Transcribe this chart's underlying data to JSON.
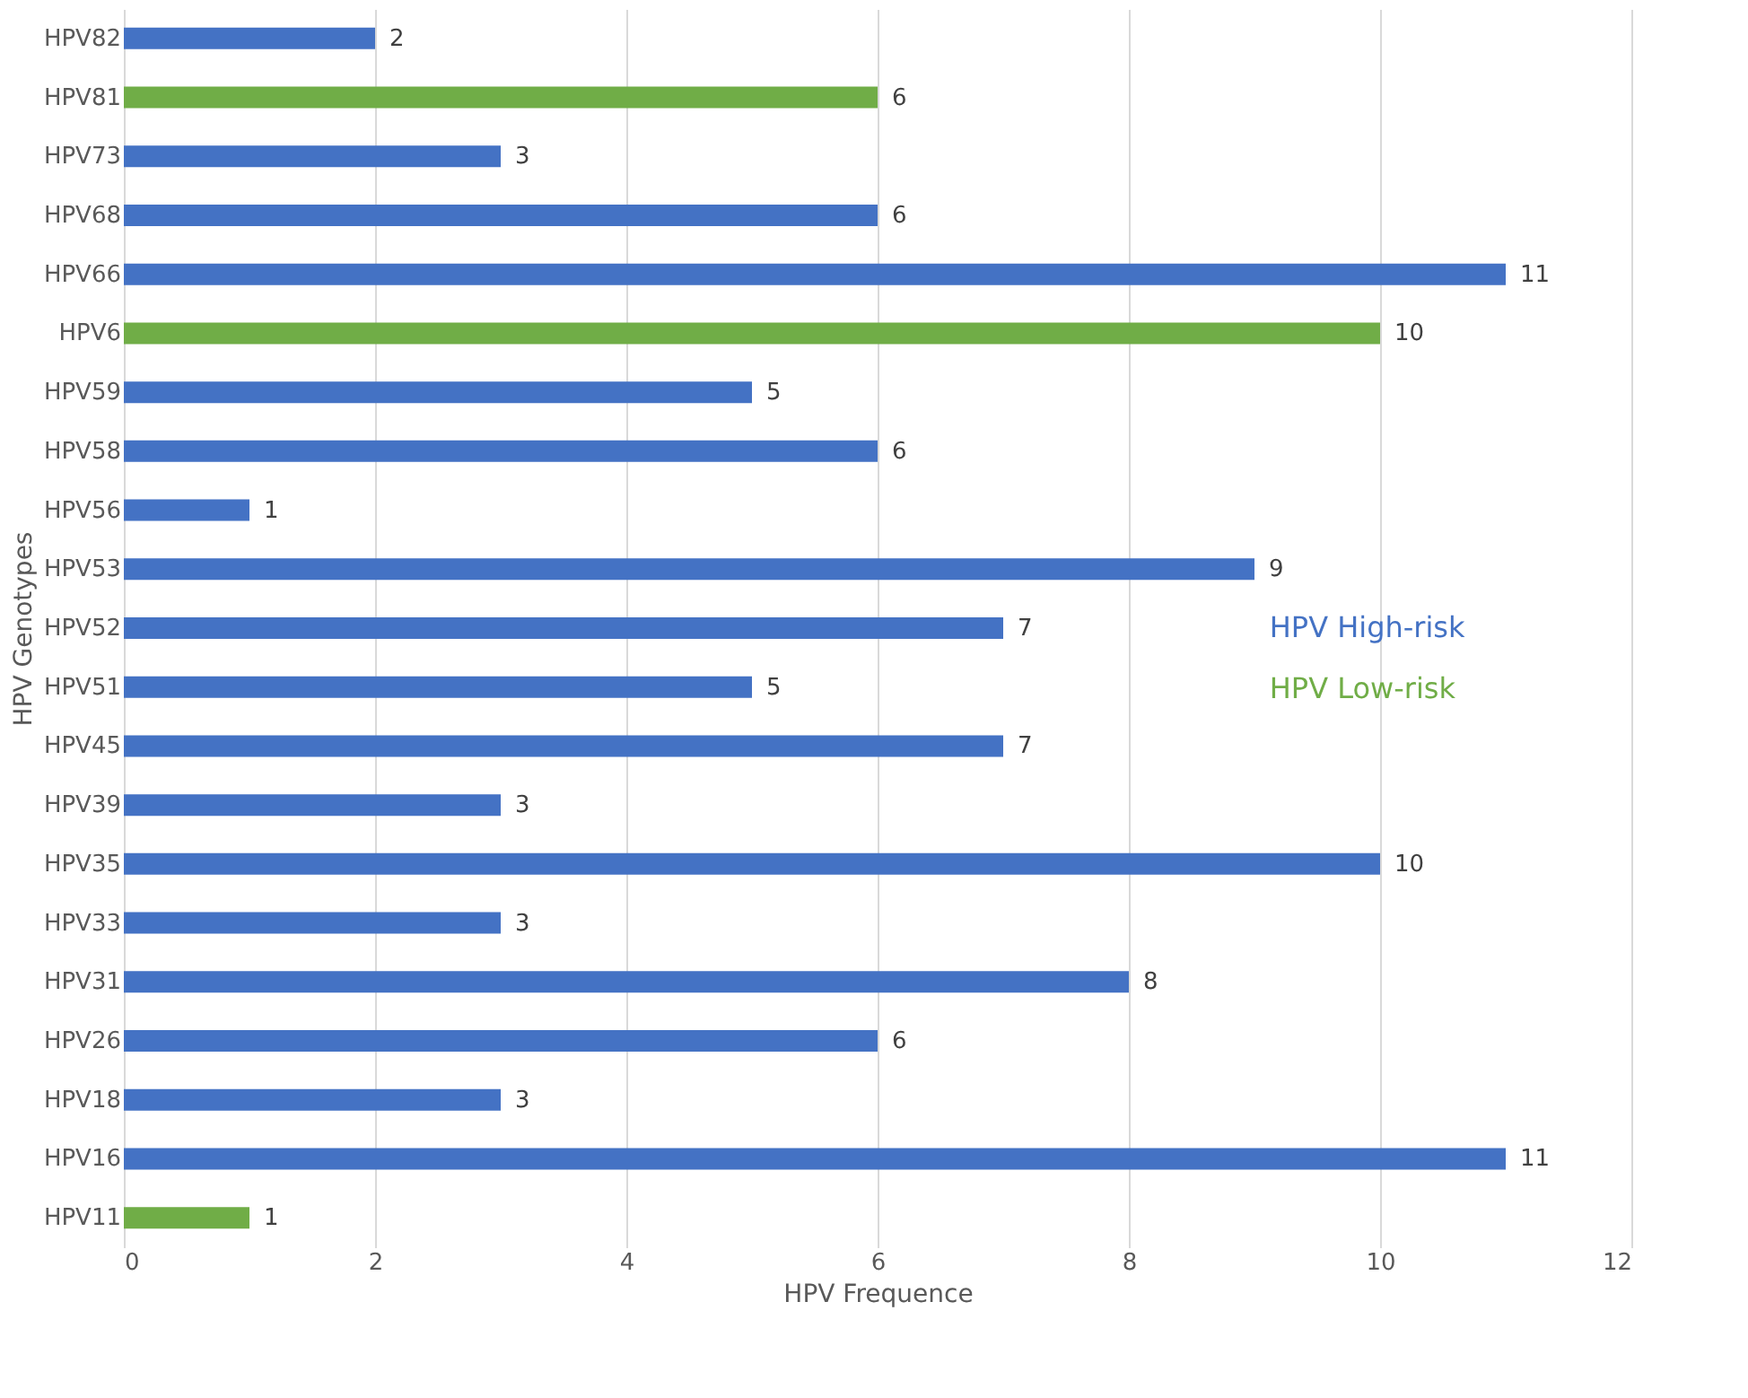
{
  "chart_data": {
    "type": "bar",
    "orientation": "horizontal",
    "xlabel": "HPV Frequence",
    "ylabel": "HPV Genotypes",
    "categories": [
      "HPV82",
      "HPV81",
      "HPV73",
      "HPV68",
      "HPV66",
      "HPV6",
      "HPV59",
      "HPV58",
      "HPV56",
      "HPV53",
      "HPV52",
      "HPV51",
      "HPV45",
      "HPV39",
      "HPV35",
      "HPV33",
      "HPV31",
      "HPV26",
      "HPV18",
      "HPV16",
      "HPV11"
    ],
    "series": [
      {
        "name": "HPV High-risk",
        "color": "#4472c4",
        "values": [
          2,
          null,
          3,
          6,
          11,
          null,
          5,
          6,
          1,
          9,
          7,
          5,
          7,
          3,
          10,
          3,
          8,
          6,
          3,
          11,
          null
        ]
      },
      {
        "name": "HPV Low-risk",
        "color": "#70ad47",
        "values": [
          null,
          6,
          null,
          null,
          null,
          10,
          null,
          null,
          null,
          null,
          null,
          null,
          null,
          null,
          null,
          null,
          null,
          null,
          null,
          null,
          1
        ]
      }
    ],
    "xlim": [
      0,
      12
    ],
    "xticks": [
      0,
      2,
      4,
      6,
      8,
      10,
      12
    ],
    "grid": "x",
    "data_labels": true,
    "legend": "right"
  }
}
